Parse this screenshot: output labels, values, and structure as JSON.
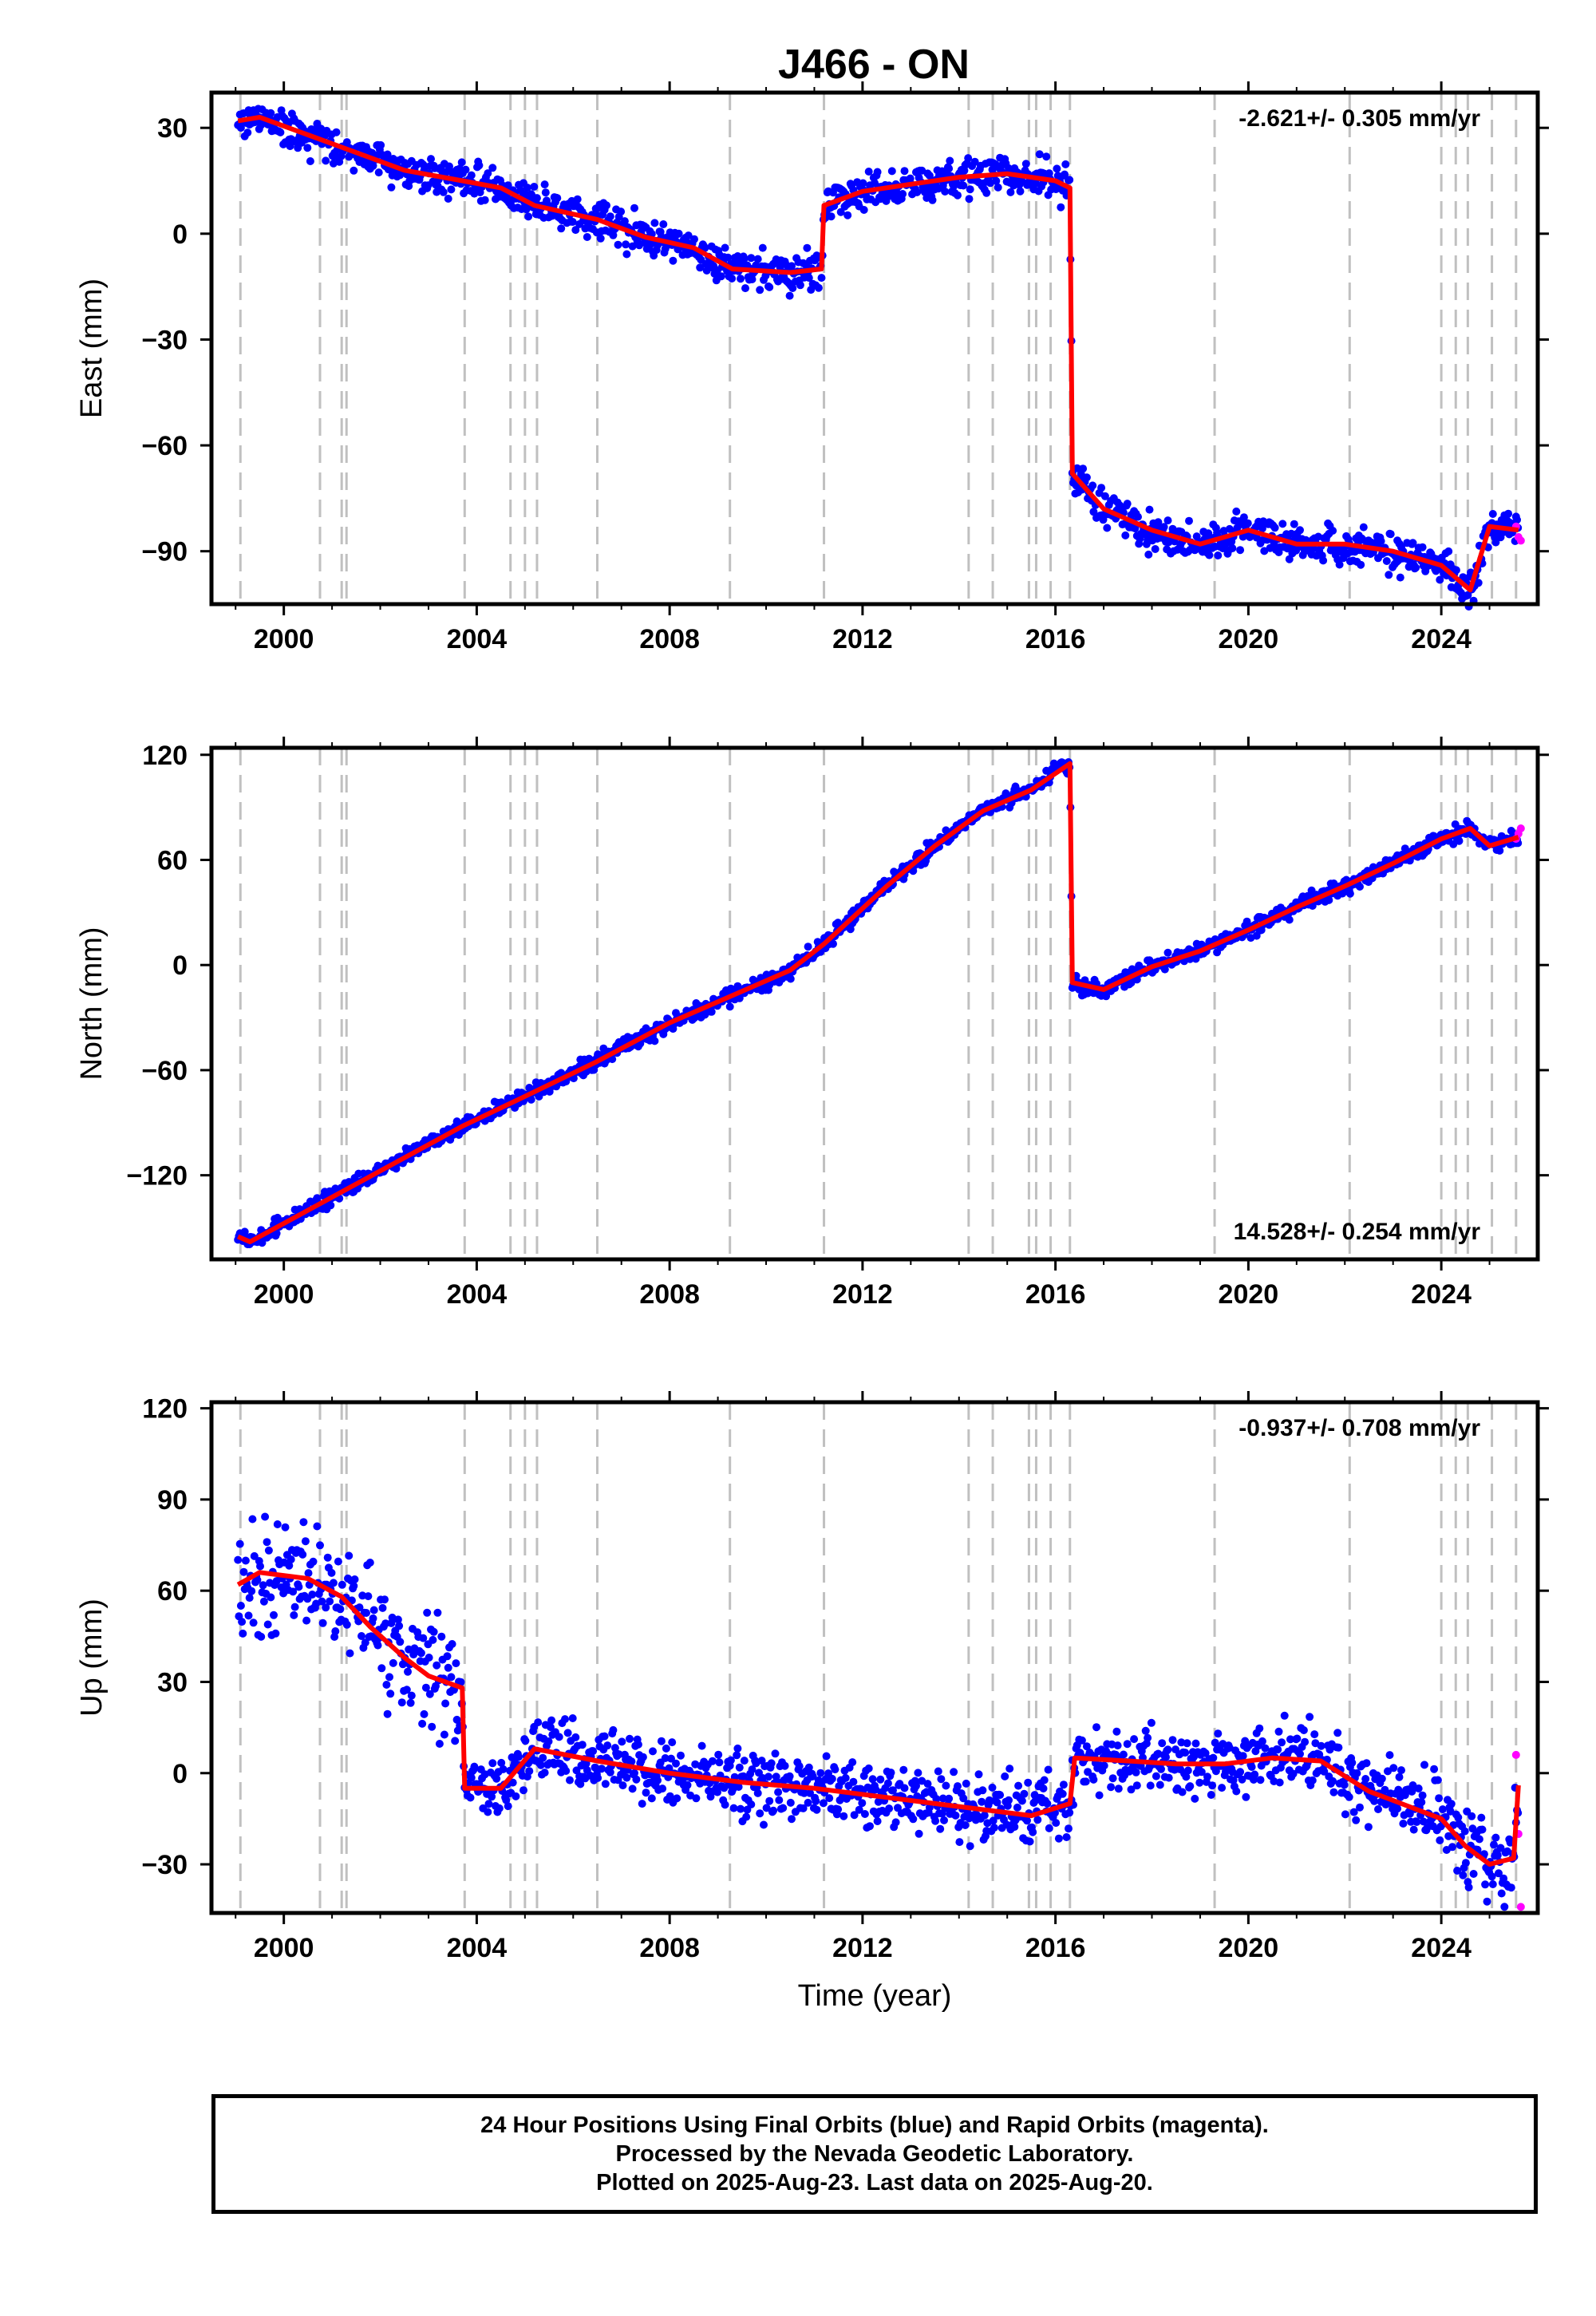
{
  "title": "J466 - ON",
  "footer": {
    "line1": "24 Hour Positions Using Final Orbits (blue) and Rapid Orbits (magenta).",
    "line2": "Processed by the Nevada Geodetic Laboratory.",
    "line3": "Plotted on 2025-Aug-23. Last data on 2025-Aug-20."
  },
  "colors": {
    "final_orbits": "#0000ff",
    "rapid_orbits": "#ff00ff",
    "model_fit": "#ff0000",
    "event_lines": "#c0c0c0"
  },
  "chart_data": [
    {
      "type": "scatter",
      "component": "east",
      "ylabel": "East (mm)",
      "xlim": [
        1998.5,
        2026.0
      ],
      "ylim": [
        -105,
        40
      ],
      "xticks": [
        2000,
        2004,
        2008,
        2012,
        2016,
        2020,
        2024
      ],
      "yticks": [
        30,
        0,
        -30,
        -60,
        -90
      ],
      "velocity_label": "-2.621+/- 0.305 mm/yr",
      "series": [
        {
          "x": [
            1999.05,
            1999.5,
            2000.5,
            2001.3,
            2002.5,
            2003.7,
            2004.5,
            2005.2,
            2006.5,
            2007.5,
            2008.5,
            2009.3,
            2010.5,
            2011.15,
            2011.2,
            2012.0,
            2013.0,
            2014.0,
            2015.0,
            2016.0,
            2016.3,
            2016.35,
            2017.0,
            2018.0,
            2019.0,
            2020.0,
            2021.0,
            2022.0,
            2023.0,
            2024.0,
            2024.6,
            2025.0,
            2025.6
          ],
          "y": [
            32,
            33,
            28,
            24,
            18,
            15,
            13,
            8,
            4,
            -1,
            -4,
            -10,
            -11,
            -10,
            8,
            12,
            14,
            16,
            17,
            15,
            13,
            -68,
            -78,
            -84,
            -88,
            -84,
            -88,
            -88,
            -90,
            -94,
            -101,
            -83,
            -84
          ]
        }
      ],
      "rapid": {
        "x": [
          2025.55,
          2025.6,
          2025.65
        ],
        "y": [
          -83,
          -86,
          -87
        ]
      }
    },
    {
      "type": "scatter",
      "component": "north",
      "ylabel": "North (mm)",
      "xlim": [
        1998.5,
        2026.0
      ],
      "ylim": [
        -168,
        124
      ],
      "xticks": [
        2000,
        2004,
        2008,
        2012,
        2016,
        2020,
        2024
      ],
      "yticks": [
        120,
        60,
        0,
        -60,
        -120
      ],
      "velocity_label": "14.528+/- 0.254 mm/yr",
      "series": [
        {
          "x": [
            1999.05,
            1999.3,
            2000.5,
            2001.5,
            2002.5,
            2003.7,
            2005.0,
            2006.5,
            2008.0,
            2009.5,
            2010.5,
            2011.2,
            2012.5,
            2013.5,
            2014.5,
            2015.5,
            2016.3,
            2016.35,
            2017.0,
            2018.0,
            2019.0,
            2020.0,
            2021.0,
            2022.0,
            2023.0,
            2024.0,
            2024.6,
            2025.0,
            2025.6
          ],
          "y": [
            -155,
            -158,
            -140,
            -125,
            -110,
            -92,
            -75,
            -55,
            -33,
            -15,
            -3,
            12,
            45,
            68,
            88,
            100,
            115,
            -10,
            -14,
            -1,
            8,
            20,
            33,
            45,
            58,
            72,
            78,
            68,
            73
          ]
        }
      ],
      "rapid": {
        "x": [
          2025.55,
          2025.6,
          2025.65
        ],
        "y": [
          72,
          75,
          78
        ]
      }
    },
    {
      "type": "scatter",
      "component": "up",
      "ylabel": "Up (mm)",
      "xlabel": "Time (year)",
      "xlim": [
        1998.5,
        2026.0
      ],
      "ylim": [
        -46,
        122
      ],
      "xticks": [
        2000,
        2004,
        2008,
        2012,
        2016,
        2020,
        2024
      ],
      "yticks": [
        120,
        90,
        60,
        30,
        0,
        -30
      ],
      "velocity_label": "-0.937+/- 0.708 mm/yr",
      "series": [
        {
          "x": [
            1999.05,
            1999.5,
            2000.5,
            2001.2,
            2001.8,
            2002.5,
            2003.0,
            2003.7,
            2003.75,
            2004.5,
            2005.2,
            2006.5,
            2008.0,
            2009.5,
            2011.0,
            2012.5,
            2013.5,
            2014.5,
            2015.5,
            2016.3,
            2016.4,
            2017.5,
            2018.5,
            2019.5,
            2020.5,
            2021.5,
            2022.5,
            2023.0,
            2023.5,
            2024.0,
            2024.5,
            2025.0,
            2025.5,
            2025.6
          ],
          "y": [
            62,
            66,
            64,
            58,
            48,
            38,
            32,
            28,
            -5,
            -5,
            8,
            4,
            0,
            -3,
            -5,
            -8,
            -10,
            -12,
            -14,
            -10,
            5,
            4,
            3,
            3,
            5,
            4,
            -6,
            -9,
            -12,
            -15,
            -24,
            -30,
            -28,
            -4
          ]
        }
      ],
      "rapid": {
        "x": [
          2025.55,
          2025.6,
          2025.65
        ],
        "y": [
          6,
          -20,
          -44
        ]
      }
    }
  ],
  "event_lines_x": [
    1999.1,
    2000.75,
    2001.2,
    2001.3,
    2003.75,
    2004.7,
    2005.0,
    2005.25,
    2006.5,
    2009.25,
    2011.2,
    2014.2,
    2014.7,
    2015.45,
    2015.6,
    2015.9,
    2016.3,
    2019.3,
    2022.1,
    2024.0,
    2024.3,
    2024.55,
    2025.05,
    2025.55
  ]
}
